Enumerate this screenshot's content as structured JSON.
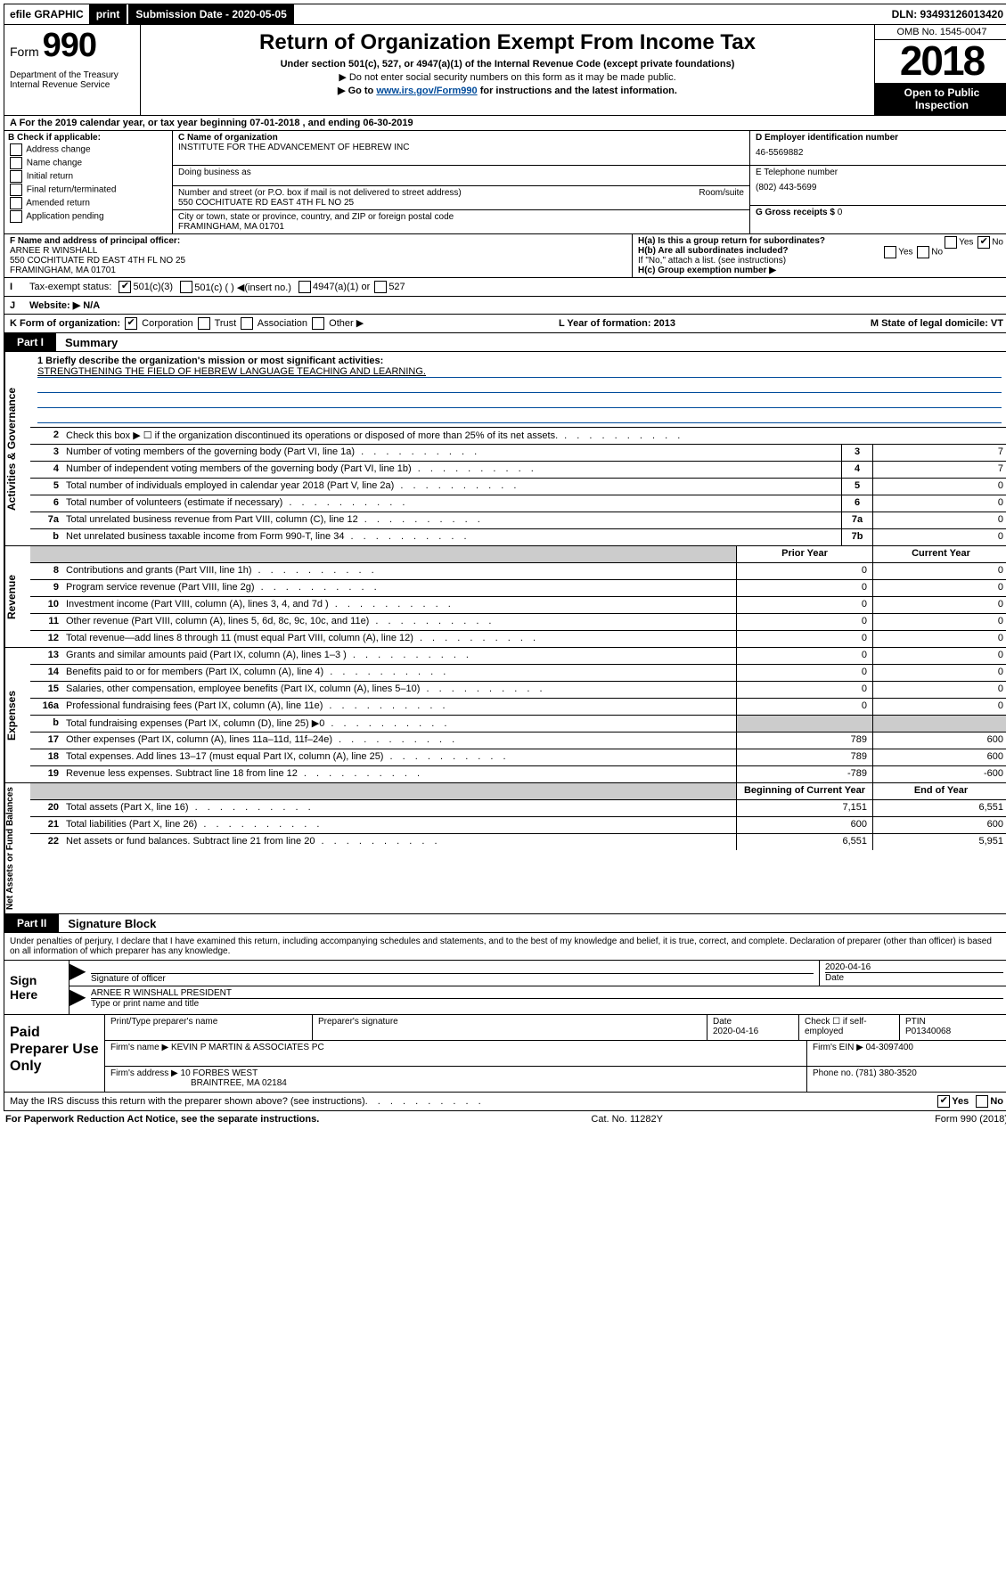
{
  "top_bar": {
    "efile": "efile GRAPHIC",
    "print": "print",
    "submission_label": "Submission Date - 2020-05-05",
    "dln": "DLN: 93493126013420"
  },
  "header": {
    "form_label": "Form",
    "form_number": "990",
    "dept": "Department of the Treasury Internal Revenue Service",
    "title": "Return of Organization Exempt From Income Tax",
    "sub": "Under section 501(c), 527, or 4947(a)(1) of the Internal Revenue Code (except private foundations)",
    "note1": "▶ Do not enter social security numbers on this form as it may be made public.",
    "note2_pre": "▶ Go to ",
    "note2_link": "www.irs.gov/Form990",
    "note2_post": " for instructions and the latest information.",
    "omb": "OMB No. 1545-0047",
    "year": "2018",
    "inspect1": "Open to Public",
    "inspect2": "Inspection"
  },
  "row_a": "A  For the 2019 calendar year, or tax year beginning 07-01-2018   , and ending 06-30-2019",
  "col_b": {
    "label": "B Check if applicable:",
    "items": [
      "Address change",
      "Name change",
      "Initial return",
      "Final return/terminated",
      "Amended return",
      "Application pending"
    ]
  },
  "col_c": {
    "c_label": "C Name of organization",
    "name": "INSTITUTE FOR THE ADVANCEMENT OF HEBREW INC",
    "dba_label": "Doing business as",
    "addr_label": "Number and street (or P.O. box if mail is not delivered to street address)",
    "room_label": "Room/suite",
    "addr": "550 COCHITUATE RD EAST 4TH FL NO 25",
    "city_label": "City or town, state or province, country, and ZIP or foreign postal code",
    "city": "FRAMINGHAM, MA  01701"
  },
  "col_de": {
    "d_label": "D Employer identification number",
    "d_val": "46-5569882",
    "e_label": "E Telephone number",
    "e_val": "(802) 443-5699",
    "g_label": "G Gross receipts $",
    "g_val": "0"
  },
  "col_f": {
    "label": "F  Name and address of principal officer:",
    "name": "ARNEE R WINSHALL",
    "addr": "550 COCHITUATE RD EAST 4TH FL NO 25",
    "city": "FRAMINGHAM, MA  01701"
  },
  "col_h": {
    "ha": "H(a)  Is this a group return for subordinates?",
    "ha_yes": "Yes",
    "ha_no": "No",
    "hb": "H(b)  Are all subordinates included?",
    "hb_yes": "Yes",
    "hb_no": "No",
    "hb_note": "If \"No,\" attach a list. (see instructions)",
    "hc": "H(c)  Group exemption number ▶"
  },
  "row_i": {
    "label": "Tax-exempt status:",
    "opts": [
      "501(c)(3)",
      "501(c) (  ) ◀(insert no.)",
      "4947(a)(1) or",
      "527"
    ]
  },
  "row_j": "Website: ▶  N/A",
  "row_k": {
    "k": "K Form of organization:",
    "opts": [
      "Corporation",
      "Trust",
      "Association",
      "Other ▶"
    ],
    "l": "L Year of formation: 2013",
    "m": "M State of legal domicile: VT"
  },
  "part1": {
    "tag": "Part I",
    "title": "Summary"
  },
  "mission_label": "1  Briefly describe the organization's mission or most significant activities:",
  "mission_text": "STRENGTHENING THE FIELD OF HEBREW LANGUAGE TEACHING AND LEARNING.",
  "gov_rows": [
    {
      "n": "2",
      "t": "Check this box ▶ ☐  if the organization discontinued its operations or disposed of more than 25% of its net assets.",
      "box": "",
      "v": ""
    },
    {
      "n": "3",
      "t": "Number of voting members of the governing body (Part VI, line 1a)",
      "box": "3",
      "v": "7"
    },
    {
      "n": "4",
      "t": "Number of independent voting members of the governing body (Part VI, line 1b)",
      "box": "4",
      "v": "7"
    },
    {
      "n": "5",
      "t": "Total number of individuals employed in calendar year 2018 (Part V, line 2a)",
      "box": "5",
      "v": "0"
    },
    {
      "n": "6",
      "t": "Total number of volunteers (estimate if necessary)",
      "box": "6",
      "v": "0"
    },
    {
      "n": "7a",
      "t": "Total unrelated business revenue from Part VIII, column (C), line 12",
      "box": "7a",
      "v": "0"
    },
    {
      "n": "b",
      "t": "Net unrelated business taxable income from Form 990-T, line 34",
      "box": "7b",
      "v": "0"
    }
  ],
  "year_hdr": {
    "prior": "Prior Year",
    "current": "Current Year"
  },
  "rev_rows": [
    {
      "n": "8",
      "t": "Contributions and grants (Part VIII, line 1h)",
      "p": "0",
      "c": "0"
    },
    {
      "n": "9",
      "t": "Program service revenue (Part VIII, line 2g)",
      "p": "0",
      "c": "0"
    },
    {
      "n": "10",
      "t": "Investment income (Part VIII, column (A), lines 3, 4, and 7d )",
      "p": "0",
      "c": "0"
    },
    {
      "n": "11",
      "t": "Other revenue (Part VIII, column (A), lines 5, 6d, 8c, 9c, 10c, and 11e)",
      "p": "0",
      "c": "0"
    },
    {
      "n": "12",
      "t": "Total revenue—add lines 8 through 11 (must equal Part VIII, column (A), line 12)",
      "p": "0",
      "c": "0"
    }
  ],
  "exp_rows": [
    {
      "n": "13",
      "t": "Grants and similar amounts paid (Part IX, column (A), lines 1–3 )",
      "p": "0",
      "c": "0"
    },
    {
      "n": "14",
      "t": "Benefits paid to or for members (Part IX, column (A), line 4)",
      "p": "0",
      "c": "0"
    },
    {
      "n": "15",
      "t": "Salaries, other compensation, employee benefits (Part IX, column (A), lines 5–10)",
      "p": "0",
      "c": "0"
    },
    {
      "n": "16a",
      "t": "Professional fundraising fees (Part IX, column (A), line 11e)",
      "p": "0",
      "c": "0"
    },
    {
      "n": "b",
      "t": "Total fundraising expenses (Part IX, column (D), line 25) ▶0",
      "p": "",
      "c": "",
      "shade": true
    },
    {
      "n": "17",
      "t": "Other expenses (Part IX, column (A), lines 11a–11d, 11f–24e)",
      "p": "789",
      "c": "600"
    },
    {
      "n": "18",
      "t": "Total expenses. Add lines 13–17 (must equal Part IX, column (A), line 25)",
      "p": "789",
      "c": "600"
    },
    {
      "n": "19",
      "t": "Revenue less expenses. Subtract line 18 from line 12",
      "p": "-789",
      "c": "-600"
    }
  ],
  "net_hdr": {
    "begin": "Beginning of Current Year",
    "end": "End of Year"
  },
  "net_rows": [
    {
      "n": "20",
      "t": "Total assets (Part X, line 16)",
      "p": "7,151",
      "c": "6,551"
    },
    {
      "n": "21",
      "t": "Total liabilities (Part X, line 26)",
      "p": "600",
      "c": "600"
    },
    {
      "n": "22",
      "t": "Net assets or fund balances. Subtract line 21 from line 20",
      "p": "6,551",
      "c": "5,951"
    }
  ],
  "part2": {
    "tag": "Part II",
    "title": "Signature Block"
  },
  "perjury": "Under penalties of perjury, I declare that I have examined this return, including accompanying schedules and statements, and to the best of my knowledge and belief, it is true, correct, and complete. Declaration of preparer (other than officer) is based on all information of which preparer has any knowledge.",
  "sign": {
    "label": "Sign Here",
    "sig_label": "Signature of officer",
    "date": "2020-04-16",
    "date_label": "Date",
    "name": "ARNEE R WINSHALL  PRESIDENT",
    "name_label": "Type or print name and title"
  },
  "prep": {
    "label": "Paid Preparer Use Only",
    "h1": "Print/Type preparer's name",
    "h2": "Preparer's signature",
    "h3": "Date",
    "date": "2020-04-16",
    "h4": "Check ☐ if self-employed",
    "h5": "PTIN",
    "ptin": "P01340068",
    "firm_label": "Firm's name    ▶",
    "firm": "KEVIN P MARTIN & ASSOCIATES PC",
    "ein_label": "Firm's EIN ▶",
    "ein": "04-3097400",
    "addr_label": "Firm's address ▶",
    "addr1": "10 FORBES WEST",
    "addr2": "BRAINTREE, MA  02184",
    "phone_label": "Phone no.",
    "phone": "(781) 380-3520"
  },
  "discuss": "May the IRS discuss this return with the preparer shown above? (see instructions)",
  "discuss_yes": "Yes",
  "discuss_no": "No",
  "footer": {
    "pra": "For Paperwork Reduction Act Notice, see the separate instructions.",
    "cat": "Cat. No. 11282Y",
    "form": "Form 990 (2018)"
  }
}
